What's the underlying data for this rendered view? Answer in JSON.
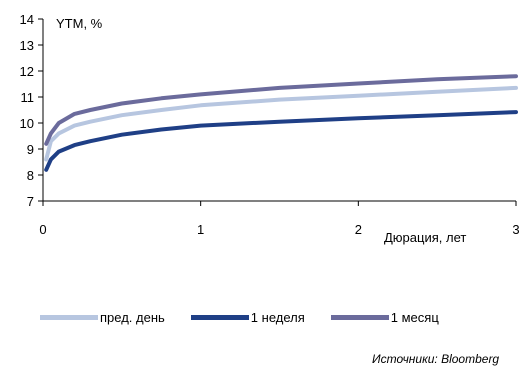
{
  "chart_data": {
    "type": "line",
    "ylabel": "YTM, %",
    "xlabel": "Дюрация, лет",
    "xlim": [
      0,
      3
    ],
    "ylim": [
      7,
      14
    ],
    "xticks": [
      "0",
      "1",
      "2",
      "3"
    ],
    "yticks": [
      "7",
      "8",
      "9",
      "10",
      "11",
      "12",
      "13",
      "14"
    ],
    "grid": false,
    "legend_position": "bottom",
    "series": [
      {
        "name": "пред. день",
        "color": "#b7c6e0",
        "x": [
          0.02,
          0.05,
          0.1,
          0.2,
          0.3,
          0.5,
          0.75,
          1.0,
          1.5,
          2.0,
          2.5,
          3.0
        ],
        "y": [
          8.6,
          9.3,
          9.6,
          9.9,
          10.05,
          10.3,
          10.5,
          10.68,
          10.9,
          11.05,
          11.2,
          11.35
        ]
      },
      {
        "name": "1 неделя",
        "color": "#1f3f86",
        "x": [
          0.02,
          0.05,
          0.1,
          0.2,
          0.3,
          0.5,
          0.75,
          1.0,
          1.5,
          2.0,
          2.5,
          3.0
        ],
        "y": [
          8.2,
          8.6,
          8.9,
          9.15,
          9.3,
          9.55,
          9.75,
          9.9,
          10.05,
          10.18,
          10.3,
          10.42
        ]
      },
      {
        "name": "1 месяц",
        "color": "#6b6b9c",
        "x": [
          0.02,
          0.05,
          0.1,
          0.2,
          0.3,
          0.5,
          0.75,
          1.0,
          1.5,
          2.0,
          2.5,
          3.0
        ],
        "y": [
          9.2,
          9.6,
          10.0,
          10.35,
          10.5,
          10.75,
          10.95,
          11.1,
          11.35,
          11.52,
          11.68,
          11.8
        ]
      }
    ]
  },
  "source_note": "Источники: Bloomberg"
}
